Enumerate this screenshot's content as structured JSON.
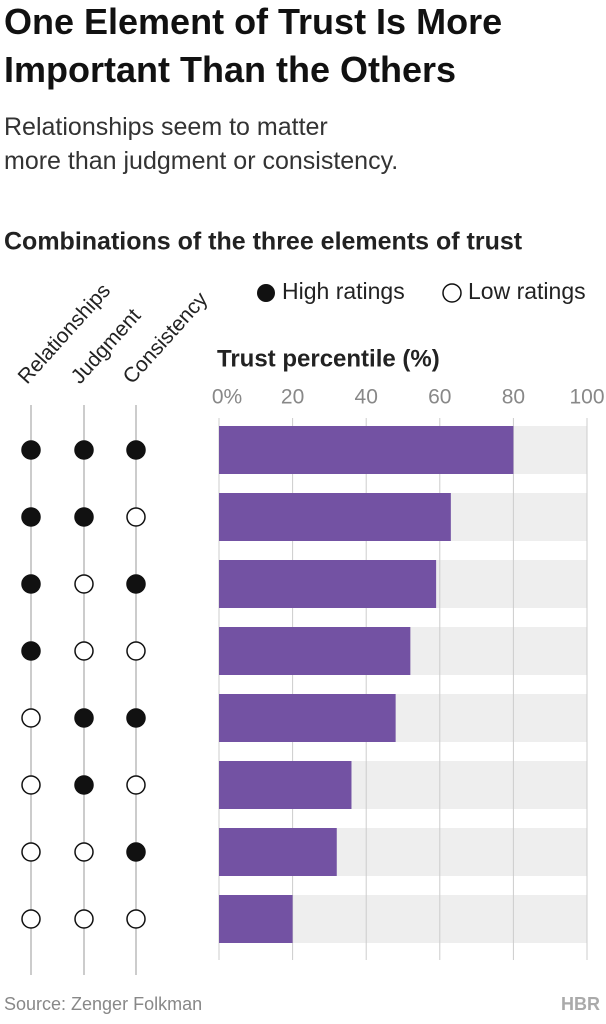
{
  "chart_data": {
    "type": "bar",
    "orientation": "horizontal",
    "title": "One Element of Trust Is More Important Than the Others",
    "subtitle": "Relationships seem to matter more than judgment or consistency.",
    "heading": "Combinations of the three elements of trust",
    "legend": {
      "high": "High ratings",
      "low": "Low ratings"
    },
    "elements": [
      "Relationships",
      "Judgment",
      "Consistency"
    ],
    "combinations": [
      [
        "high",
        "high",
        "high"
      ],
      [
        "high",
        "high",
        "low"
      ],
      [
        "high",
        "low",
        "high"
      ],
      [
        "high",
        "low",
        "low"
      ],
      [
        "low",
        "high",
        "high"
      ],
      [
        "low",
        "high",
        "low"
      ],
      [
        "low",
        "low",
        "high"
      ],
      [
        "low",
        "low",
        "low"
      ]
    ],
    "x_label": "Trust percentile (%)",
    "values": [
      80,
      63,
      59,
      52,
      48,
      36,
      32,
      20
    ],
    "color": "#7352a3",
    "xlim": [
      0,
      100
    ],
    "xticks": [
      {
        "value": 0,
        "label": "0%"
      },
      20,
      40,
      60,
      80,
      100
    ],
    "grid": true,
    "source": "Source: Zenger Folkman",
    "logo": "HBR"
  }
}
